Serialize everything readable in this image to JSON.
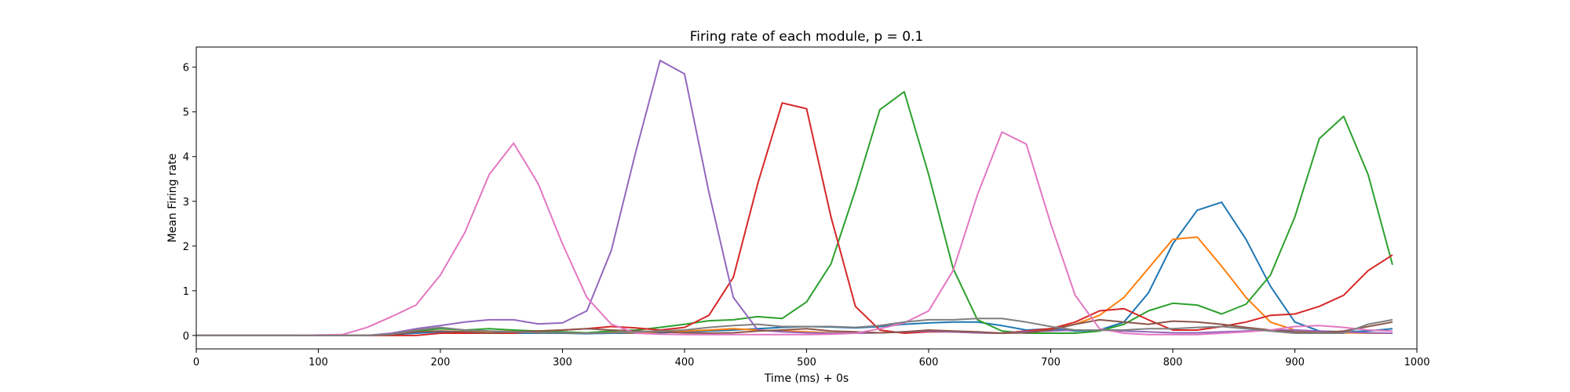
{
  "chart_data": {
    "type": "line",
    "title": "Firing rate of each module, p = 0.1",
    "xlabel": "Time (ms) + 0s",
    "ylabel": "Mean Firing rate",
    "xlim": [
      0,
      1000
    ],
    "ylim": [
      -0.3,
      6.45
    ],
    "xticks": [
      0,
      100,
      200,
      300,
      400,
      500,
      600,
      700,
      800,
      900,
      1000
    ],
    "yticks": [
      0,
      1,
      2,
      3,
      4,
      5,
      6
    ],
    "grid": false,
    "legend": "none",
    "x": [
      0,
      20,
      40,
      60,
      80,
      100,
      120,
      140,
      160,
      180,
      200,
      220,
      240,
      260,
      280,
      300,
      320,
      340,
      360,
      380,
      400,
      420,
      440,
      460,
      480,
      500,
      520,
      540,
      560,
      580,
      600,
      620,
      640,
      660,
      680,
      700,
      720,
      740,
      760,
      780,
      800,
      820,
      840,
      860,
      880,
      900,
      920,
      940,
      960,
      980
    ],
    "series": [
      {
        "color": "#1f77b4",
        "values": [
          0,
          0,
          0,
          0,
          0,
          0,
          0,
          0,
          0.02,
          0.05,
          0.08,
          0.08,
          0.06,
          0.05,
          0.05,
          0.05,
          0.04,
          0.05,
          0.05,
          0.06,
          0.08,
          0.1,
          0.12,
          0.15,
          0.18,
          0.2,
          0.19,
          0.17,
          0.2,
          0.25,
          0.28,
          0.3,
          0.3,
          0.22,
          0.12,
          0.15,
          0.1,
          0.12,
          0.3,
          0.95,
          2.05,
          2.8,
          2.98,
          2.15,
          1.1,
          0.3,
          0.1,
          0.08,
          0.1,
          0.15
        ]
      },
      {
        "color": "#ff7f0e",
        "values": [
          0,
          0,
          0,
          0,
          0,
          0,
          0,
          0,
          0.02,
          0.1,
          0.15,
          0.12,
          0.08,
          0.1,
          0.08,
          0.06,
          0.05,
          0.07,
          0.06,
          0.08,
          0.1,
          0.12,
          0.15,
          0.12,
          0.1,
          0.08,
          0.06,
          0.05,
          0.06,
          0.08,
          0.1,
          0.08,
          0.06,
          0.05,
          0.1,
          0.15,
          0.25,
          0.45,
          0.85,
          1.5,
          2.15,
          2.2,
          1.55,
          0.85,
          0.3,
          0.12,
          0.08,
          0.06,
          0.05,
          0.05
        ]
      },
      {
        "color": "#2ca02c",
        "values": [
          0,
          0,
          0,
          0,
          0,
          0,
          0,
          0,
          0.02,
          0.1,
          0.15,
          0.12,
          0.15,
          0.12,
          0.1,
          0.08,
          0.06,
          0.1,
          0.12,
          0.18,
          0.25,
          0.33,
          0.35,
          0.42,
          0.38,
          0.75,
          1.6,
          3.25,
          5.05,
          5.45,
          3.6,
          1.5,
          0.35,
          0.1,
          0.05,
          0.05,
          0.05,
          0.1,
          0.25,
          0.55,
          0.72,
          0.68,
          0.48,
          0.7,
          1.35,
          2.65,
          4.4,
          4.9,
          3.6,
          1.58
        ]
      },
      {
        "color": "#d62728",
        "values": [
          0,
          0,
          0,
          0,
          0,
          0,
          0,
          0,
          0,
          0,
          0.05,
          0.05,
          0.05,
          0.05,
          0.1,
          0.12,
          0.15,
          0.2,
          0.17,
          0.12,
          0.18,
          0.45,
          1.3,
          3.4,
          5.2,
          5.07,
          2.65,
          0.65,
          0.12,
          0.05,
          0.08,
          0.08,
          0.06,
          0.05,
          0.1,
          0.15,
          0.3,
          0.55,
          0.6,
          0.35,
          0.12,
          0.12,
          0.2,
          0.3,
          0.45,
          0.48,
          0.65,
          0.9,
          1.45,
          1.8
        ]
      },
      {
        "color": "#9467bd",
        "values": [
          0,
          0,
          0,
          0,
          0,
          0,
          0,
          0,
          0.05,
          0.15,
          0.22,
          0.3,
          0.35,
          0.35,
          0.26,
          0.28,
          0.55,
          1.9,
          4.1,
          6.15,
          5.85,
          3.2,
          0.85,
          0.12,
          0.08,
          0.06,
          0.05,
          0.05,
          0.06,
          0.08,
          0.1,
          0.08,
          0.06,
          0.05,
          0.08,
          0.1,
          0.12,
          0.12,
          0.1,
          0.08,
          0.06,
          0.06,
          0.08,
          0.1,
          0.12,
          0.12,
          0.1,
          0.08,
          0.06,
          0.05
        ]
      },
      {
        "color": "#8c564b",
        "values": [
          0,
          0,
          0,
          0,
          0,
          0,
          0,
          0,
          0.02,
          0.08,
          0.1,
          0.08,
          0.05,
          0.08,
          0.1,
          0.12,
          0.15,
          0.12,
          0.1,
          0.08,
          0.06,
          0.05,
          0.06,
          0.1,
          0.12,
          0.15,
          0.1,
          0.08,
          0.06,
          0.08,
          0.12,
          0.1,
          0.08,
          0.05,
          0.06,
          0.12,
          0.25,
          0.35,
          0.3,
          0.25,
          0.32,
          0.3,
          0.25,
          0.18,
          0.12,
          0.08,
          0.06,
          0.1,
          0.2,
          0.3
        ]
      },
      {
        "color": "#e377c2",
        "values": [
          0,
          0,
          0,
          0,
          0,
          0.01,
          0.02,
          0.18,
          0.42,
          0.68,
          1.35,
          2.3,
          3.6,
          4.3,
          3.4,
          2.05,
          0.85,
          0.25,
          0.05,
          0.03,
          0.02,
          0.02,
          0.02,
          0.02,
          0.02,
          0.02,
          0.03,
          0.05,
          0.15,
          0.28,
          0.55,
          1.45,
          3.15,
          4.55,
          4.28,
          2.5,
          0.9,
          0.15,
          0.05,
          0.02,
          0.02,
          0.02,
          0.05,
          0.08,
          0.12,
          0.2,
          0.22,
          0.18,
          0.12,
          0.1
        ]
      },
      {
        "color": "#7f7f7f",
        "values": [
          0,
          0,
          0,
          0,
          0,
          0,
          0,
          0,
          0.03,
          0.12,
          0.18,
          0.12,
          0.1,
          0.08,
          0.06,
          0.06,
          0.05,
          0.06,
          0.08,
          0.1,
          0.12,
          0.18,
          0.22,
          0.25,
          0.2,
          0.2,
          0.2,
          0.18,
          0.22,
          0.3,
          0.35,
          0.35,
          0.38,
          0.38,
          0.3,
          0.2,
          0.12,
          0.12,
          0.12,
          0.15,
          0.15,
          0.18,
          0.2,
          0.15,
          0.1,
          0.05,
          0.05,
          0.05,
          0.25,
          0.35
        ]
      }
    ]
  }
}
